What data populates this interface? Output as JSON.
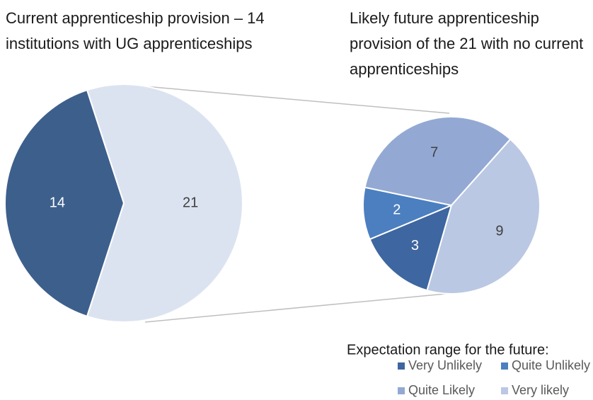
{
  "chart_data": [
    {
      "type": "pie",
      "title": "Current apprenticeship provision – 14 institutions with UG apprenticeships",
      "categories": [
        null,
        null
      ],
      "values": [
        14,
        21
      ],
      "colors": [
        "#3d5f8c",
        "#dce3f0"
      ]
    },
    {
      "type": "pie",
      "title": "Likely future apprenticeship provision of the 21 with no current apprenticeships",
      "legend_title": "Expectation range for the future:",
      "categories": [
        "Very Unlikely",
        "Quite Unlikely",
        "Quite Likely",
        "Very likely"
      ],
      "values": [
        3,
        2,
        7,
        9
      ],
      "colors": [
        "#3e66a0",
        "#4b7fc0",
        "#93a9d3",
        "#bac8e3"
      ]
    }
  ]
}
